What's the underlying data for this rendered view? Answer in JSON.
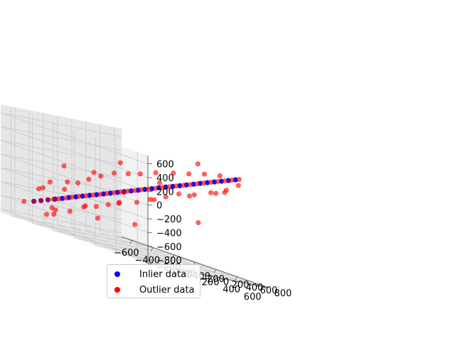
{
  "chart_data": {
    "type": "scatter",
    "projection": "3d",
    "title": "",
    "xlabel": "",
    "ylabel": "",
    "zlabel": "",
    "xlim": [
      -700,
      700
    ],
    "ylim": [
      -800,
      900
    ],
    "zlim": [
      -850,
      720
    ],
    "x_ticks": [
      "−600",
      "−400",
      "−200",
      "0",
      "200",
      "400",
      "600"
    ],
    "y_ticks": [
      "−600",
      "−400",
      "−200",
      "0",
      "200",
      "400",
      "600",
      "800"
    ],
    "z_ticks": [
      "−800",
      "−600",
      "−400",
      "−200",
      "0",
      "200",
      "400",
      "600"
    ],
    "x_tick_values": [
      -600,
      -400,
      -200,
      0,
      200,
      400,
      600
    ],
    "y_tick_values": [
      -600,
      -400,
      -200,
      0,
      200,
      400,
      600,
      800
    ],
    "z_tick_values": [
      -800,
      -600,
      -400,
      -200,
      0,
      200,
      400,
      600
    ],
    "grid": true,
    "legend_position": "lower-left",
    "series": [
      {
        "name": "Inlier data",
        "color": "#0000ff",
        "points": [
          [
            -560,
            -540,
            -560
          ],
          [
            -520,
            -500,
            -520
          ],
          [
            -480,
            -460,
            -480
          ],
          [
            -440,
            -420,
            -440
          ],
          [
            -400,
            -380,
            -400
          ],
          [
            -360,
            -345,
            -360
          ],
          [
            -320,
            -305,
            -320
          ],
          [
            -280,
            -270,
            -280
          ],
          [
            -240,
            -230,
            -240
          ],
          [
            -200,
            -190,
            -200
          ],
          [
            -160,
            -150,
            -160
          ],
          [
            -120,
            -115,
            -120
          ],
          [
            -80,
            -75,
            -80
          ],
          [
            -40,
            -40,
            -40
          ],
          [
            0,
            0,
            0
          ],
          [
            40,
            40,
            40
          ],
          [
            80,
            75,
            80
          ],
          [
            120,
            115,
            120
          ],
          [
            160,
            150,
            160
          ],
          [
            200,
            190,
            200
          ],
          [
            240,
            230,
            240
          ],
          [
            280,
            270,
            280
          ],
          [
            320,
            305,
            320
          ],
          [
            360,
            345,
            360
          ],
          [
            400,
            380,
            400
          ],
          [
            440,
            420,
            440
          ],
          [
            480,
            460,
            480
          ],
          [
            520,
            500,
            520
          ],
          [
            560,
            540,
            560
          ],
          [
            600,
            580,
            600
          ]
        ]
      },
      {
        "name": "Outlier data",
        "color": "#ff0000",
        "points": [
          [
            -560,
            -540,
            -560
          ],
          [
            -520,
            -500,
            -520
          ],
          [
            -480,
            -460,
            -480
          ],
          [
            -450,
            -430,
            -450
          ],
          [
            -420,
            -400,
            -420
          ],
          [
            -380,
            -360,
            -380
          ],
          [
            -340,
            -330,
            -340
          ],
          [
            -300,
            -290,
            -300
          ],
          [
            -260,
            -250,
            -260
          ],
          [
            -220,
            -210,
            -220
          ],
          [
            -180,
            -170,
            -180
          ],
          [
            -140,
            -135,
            -140
          ],
          [
            -100,
            -95,
            -100
          ],
          [
            -60,
            -60,
            -60
          ],
          [
            -20,
            -20,
            -20
          ],
          [
            20,
            20,
            20
          ],
          [
            60,
            55,
            60
          ],
          [
            100,
            95,
            100
          ],
          [
            140,
            135,
            140
          ],
          [
            180,
            170,
            180
          ],
          [
            220,
            210,
            220
          ],
          [
            260,
            250,
            260
          ],
          [
            300,
            290,
            300
          ],
          [
            340,
            325,
            340
          ],
          [
            380,
            365,
            380
          ],
          [
            420,
            400,
            420
          ],
          [
            460,
            440,
            460
          ],
          [
            500,
            480,
            500
          ],
          [
            540,
            520,
            540
          ],
          [
            580,
            560,
            580
          ],
          [
            620,
            600,
            620
          ],
          [
            -600,
            -620,
            -600
          ],
          [
            -500,
            -560,
            -350
          ],
          [
            -450,
            -400,
            -600
          ],
          [
            -420,
            -520,
            -200
          ],
          [
            -380,
            -300,
            -560
          ],
          [
            -350,
            -420,
            -250
          ],
          [
            -300,
            -200,
            -420
          ],
          [
            -270,
            -350,
            -100
          ],
          [
            -230,
            -150,
            -380
          ],
          [
            -200,
            -300,
            0
          ],
          [
            -150,
            -100,
            -300
          ],
          [
            -120,
            -250,
            100
          ],
          [
            -80,
            -50,
            -220
          ],
          [
            -40,
            -180,
            200
          ],
          [
            0,
            80,
            -150
          ],
          [
            40,
            -100,
            250
          ],
          [
            80,
            150,
            -50
          ],
          [
            120,
            -50,
            300
          ],
          [
            160,
            250,
            50
          ],
          [
            200,
            50,
            380
          ],
          [
            250,
            300,
            150
          ],
          [
            300,
            150,
            450
          ],
          [
            330,
            400,
            200
          ],
          [
            380,
            250,
            500
          ],
          [
            420,
            500,
            300
          ],
          [
            460,
            350,
            560
          ],
          [
            500,
            600,
            400
          ],
          [
            540,
            450,
            600
          ],
          [
            580,
            650,
            520
          ],
          [
            -500,
            -450,
            -700
          ],
          [
            -300,
            -500,
            100
          ],
          [
            -100,
            200,
            -500
          ],
          [
            100,
            -300,
            400
          ],
          [
            300,
            500,
            -200
          ],
          [
            500,
            200,
            700
          ],
          [
            -200,
            -600,
            -100
          ],
          [
            0,
            400,
            200
          ],
          [
            200,
            -400,
            0
          ],
          [
            400,
            600,
            300
          ],
          [
            -550,
            -300,
            -600
          ],
          [
            -350,
            -150,
            -450
          ],
          [
            -150,
            50,
            -250
          ],
          [
            50,
            250,
            -50
          ],
          [
            250,
            450,
            150
          ],
          [
            450,
            650,
            350
          ],
          [
            -600,
            -200,
            -700
          ],
          [
            -400,
            -650,
            -300
          ],
          [
            -250,
            -100,
            -550
          ],
          [
            -50,
            -450,
            150
          ]
        ]
      }
    ]
  }
}
